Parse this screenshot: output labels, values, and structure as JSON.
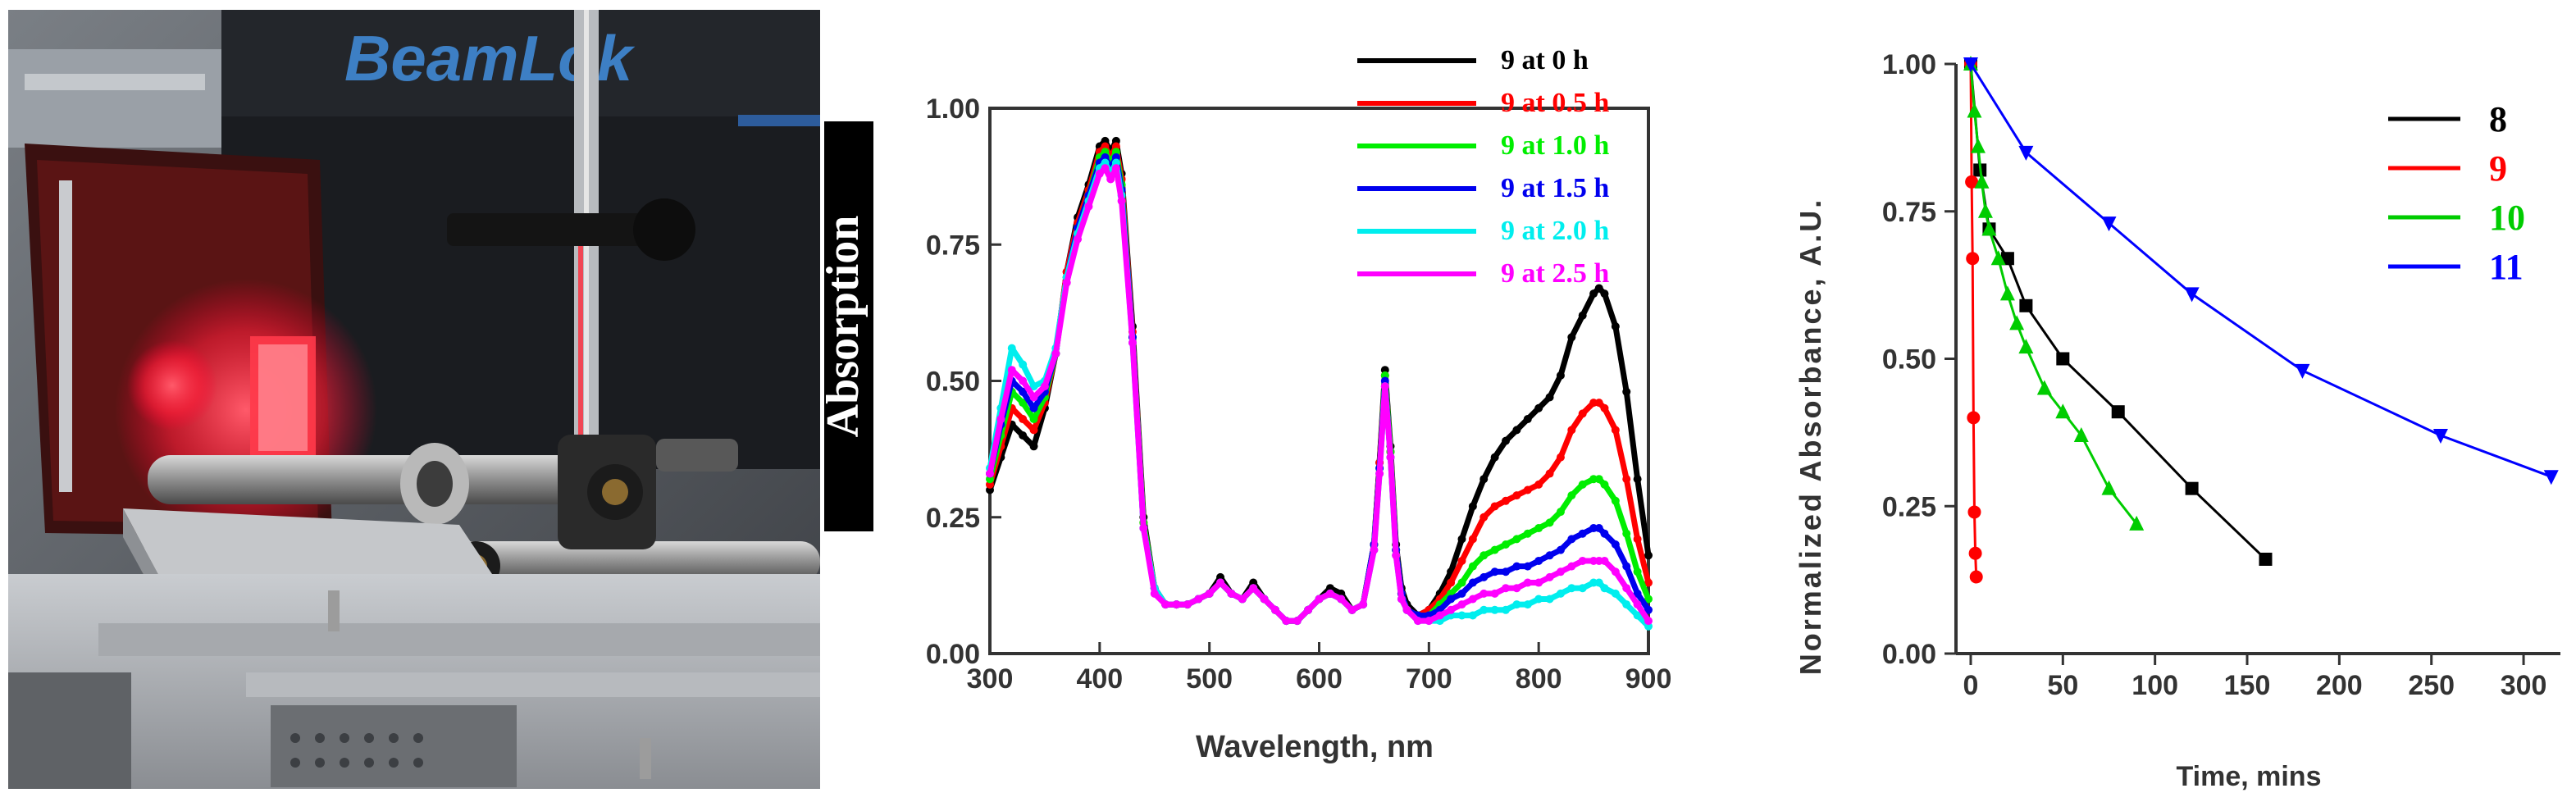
{
  "photo": {
    "brand_text": "BeamLok",
    "description_icon": "laser-setup-photo-icon"
  },
  "chart_data": [
    {
      "type": "line",
      "title": "",
      "xlabel": "Wavelength, nm",
      "ylabel": "Absorption",
      "xlim": [
        300,
        900
      ],
      "ylim": [
        0,
        1.0
      ],
      "xticks": [
        "300",
        "400",
        "500",
        "600",
        "700",
        "800",
        "900"
      ],
      "yticks": [
        "0.00",
        "0.25",
        "0.50",
        "0.75",
        "1.00"
      ],
      "legend_position": "top-right",
      "x": [
        300,
        310,
        320,
        330,
        340,
        350,
        360,
        370,
        380,
        390,
        400,
        405,
        410,
        415,
        420,
        430,
        440,
        450,
        460,
        470,
        480,
        490,
        500,
        510,
        520,
        530,
        540,
        550,
        560,
        570,
        580,
        590,
        600,
        610,
        620,
        630,
        640,
        650,
        655,
        660,
        665,
        670,
        675,
        680,
        690,
        700,
        710,
        720,
        730,
        740,
        750,
        760,
        770,
        780,
        790,
        800,
        810,
        820,
        830,
        840,
        850,
        855,
        860,
        870,
        880,
        890,
        900
      ],
      "series": [
        {
          "name": "9 at 0 h",
          "color": "#000000",
          "values": [
            0.3,
            0.36,
            0.42,
            0.4,
            0.38,
            0.45,
            0.55,
            0.7,
            0.8,
            0.86,
            0.93,
            0.94,
            0.92,
            0.94,
            0.88,
            0.6,
            0.25,
            0.12,
            0.09,
            0.09,
            0.09,
            0.1,
            0.11,
            0.14,
            0.11,
            0.1,
            0.13,
            0.1,
            0.08,
            0.06,
            0.06,
            0.08,
            0.1,
            0.12,
            0.11,
            0.08,
            0.09,
            0.2,
            0.35,
            0.52,
            0.38,
            0.2,
            0.12,
            0.09,
            0.07,
            0.08,
            0.11,
            0.15,
            0.21,
            0.27,
            0.32,
            0.36,
            0.39,
            0.41,
            0.43,
            0.45,
            0.47,
            0.51,
            0.58,
            0.62,
            0.66,
            0.67,
            0.66,
            0.6,
            0.48,
            0.32,
            0.18
          ]
        },
        {
          "name": "9 at 0.5 h",
          "color": "#ff0000",
          "values": [
            0.31,
            0.38,
            0.45,
            0.43,
            0.41,
            0.46,
            0.55,
            0.7,
            0.79,
            0.85,
            0.92,
            0.93,
            0.91,
            0.93,
            0.87,
            0.59,
            0.24,
            0.12,
            0.09,
            0.09,
            0.09,
            0.1,
            0.11,
            0.13,
            0.11,
            0.1,
            0.12,
            0.1,
            0.08,
            0.06,
            0.06,
            0.08,
            0.1,
            0.11,
            0.1,
            0.08,
            0.09,
            0.2,
            0.35,
            0.51,
            0.37,
            0.19,
            0.11,
            0.08,
            0.07,
            0.08,
            0.1,
            0.13,
            0.17,
            0.21,
            0.25,
            0.27,
            0.28,
            0.29,
            0.3,
            0.31,
            0.33,
            0.36,
            0.41,
            0.44,
            0.46,
            0.46,
            0.45,
            0.41,
            0.32,
            0.21,
            0.13
          ]
        },
        {
          "name": "9 at 1.0 h",
          "color": "#00ee00",
          "values": [
            0.32,
            0.4,
            0.48,
            0.46,
            0.43,
            0.47,
            0.55,
            0.69,
            0.78,
            0.84,
            0.91,
            0.92,
            0.9,
            0.92,
            0.86,
            0.58,
            0.24,
            0.12,
            0.09,
            0.09,
            0.09,
            0.1,
            0.11,
            0.13,
            0.11,
            0.1,
            0.12,
            0.1,
            0.08,
            0.06,
            0.06,
            0.08,
            0.1,
            0.11,
            0.1,
            0.08,
            0.09,
            0.2,
            0.34,
            0.51,
            0.37,
            0.19,
            0.11,
            0.08,
            0.07,
            0.07,
            0.09,
            0.11,
            0.13,
            0.16,
            0.18,
            0.19,
            0.2,
            0.21,
            0.22,
            0.23,
            0.24,
            0.26,
            0.29,
            0.31,
            0.32,
            0.32,
            0.31,
            0.28,
            0.22,
            0.15,
            0.1
          ]
        },
        {
          "name": "9 at 1.5 h",
          "color": "#0000ee",
          "values": [
            0.33,
            0.42,
            0.5,
            0.48,
            0.45,
            0.48,
            0.55,
            0.69,
            0.78,
            0.84,
            0.9,
            0.91,
            0.89,
            0.91,
            0.85,
            0.58,
            0.23,
            0.12,
            0.09,
            0.09,
            0.09,
            0.1,
            0.11,
            0.13,
            0.11,
            0.1,
            0.12,
            0.1,
            0.08,
            0.06,
            0.06,
            0.08,
            0.1,
            0.11,
            0.1,
            0.08,
            0.09,
            0.2,
            0.34,
            0.5,
            0.36,
            0.19,
            0.11,
            0.08,
            0.07,
            0.07,
            0.08,
            0.1,
            0.11,
            0.13,
            0.14,
            0.15,
            0.15,
            0.16,
            0.16,
            0.17,
            0.18,
            0.19,
            0.21,
            0.22,
            0.23,
            0.23,
            0.22,
            0.2,
            0.16,
            0.11,
            0.08
          ]
        },
        {
          "name": "9 at 2.0 h",
          "color": "#00eeee",
          "values": [
            0.34,
            0.45,
            0.56,
            0.53,
            0.49,
            0.5,
            0.56,
            0.69,
            0.77,
            0.83,
            0.89,
            0.9,
            0.88,
            0.9,
            0.84,
            0.57,
            0.23,
            0.12,
            0.09,
            0.09,
            0.09,
            0.1,
            0.11,
            0.13,
            0.11,
            0.1,
            0.12,
            0.1,
            0.08,
            0.06,
            0.06,
            0.08,
            0.1,
            0.11,
            0.1,
            0.08,
            0.09,
            0.19,
            0.33,
            0.49,
            0.36,
            0.18,
            0.1,
            0.08,
            0.06,
            0.06,
            0.06,
            0.07,
            0.07,
            0.07,
            0.08,
            0.08,
            0.08,
            0.09,
            0.09,
            0.1,
            0.1,
            0.11,
            0.12,
            0.12,
            0.13,
            0.13,
            0.12,
            0.11,
            0.09,
            0.07,
            0.05
          ]
        },
        {
          "name": "9 at 2.5 h",
          "color": "#ff00ff",
          "values": [
            0.33,
            0.43,
            0.52,
            0.5,
            0.47,
            0.49,
            0.55,
            0.68,
            0.76,
            0.82,
            0.88,
            0.89,
            0.87,
            0.89,
            0.83,
            0.57,
            0.23,
            0.11,
            0.09,
            0.09,
            0.09,
            0.1,
            0.11,
            0.13,
            0.11,
            0.1,
            0.12,
            0.1,
            0.08,
            0.06,
            0.06,
            0.08,
            0.1,
            0.11,
            0.1,
            0.08,
            0.09,
            0.19,
            0.33,
            0.49,
            0.36,
            0.18,
            0.1,
            0.08,
            0.06,
            0.06,
            0.07,
            0.08,
            0.09,
            0.1,
            0.11,
            0.11,
            0.12,
            0.12,
            0.13,
            0.13,
            0.14,
            0.15,
            0.16,
            0.17,
            0.17,
            0.17,
            0.17,
            0.15,
            0.12,
            0.09,
            0.06
          ]
        }
      ]
    },
    {
      "type": "line",
      "title": "",
      "xlabel": "Time, mins",
      "ylabel": "Normalized Absorbance, A.U.",
      "xlim": [
        -8,
        320
      ],
      "ylim": [
        0,
        1.0
      ],
      "xticks": [
        "0",
        "50",
        "100",
        "150",
        "200",
        "250",
        "300"
      ],
      "xtick_values": [
        0,
        50,
        100,
        150,
        200,
        250,
        300
      ],
      "yticks": [
        "0.00",
        "0.25",
        "0.50",
        "0.75",
        "1.00"
      ],
      "legend_position": "top-right",
      "series": [
        {
          "name": "8",
          "color": "#000000",
          "marker": "square",
          "x": [
            0,
            5,
            10,
            20,
            30,
            50,
            80,
            120,
            160
          ],
          "values": [
            1.0,
            0.82,
            0.72,
            0.67,
            0.59,
            0.5,
            0.41,
            0.28,
            0.16
          ]
        },
        {
          "name": "9",
          "color": "#ff0000",
          "marker": "circle",
          "x": [
            0,
            0.5,
            1,
            1.5,
            2,
            2.5,
            3
          ],
          "values": [
            1.0,
            0.8,
            0.67,
            0.4,
            0.24,
            0.17,
            0.13
          ]
        },
        {
          "name": "10",
          "color": "#00cc00",
          "marker": "triangle-up",
          "x": [
            0,
            2,
            4,
            6,
            8,
            10,
            15,
            20,
            25,
            30,
            40,
            50,
            60,
            75,
            90
          ],
          "values": [
            1.0,
            0.92,
            0.86,
            0.8,
            0.75,
            0.72,
            0.67,
            0.61,
            0.56,
            0.52,
            0.45,
            0.41,
            0.37,
            0.28,
            0.22
          ]
        },
        {
          "name": "11",
          "color": "#0000ff",
          "marker": "triangle-down",
          "x": [
            0,
            30,
            75,
            120,
            180,
            255,
            315
          ],
          "values": [
            1.0,
            0.85,
            0.73,
            0.61,
            0.48,
            0.37,
            0.3
          ]
        }
      ]
    }
  ]
}
